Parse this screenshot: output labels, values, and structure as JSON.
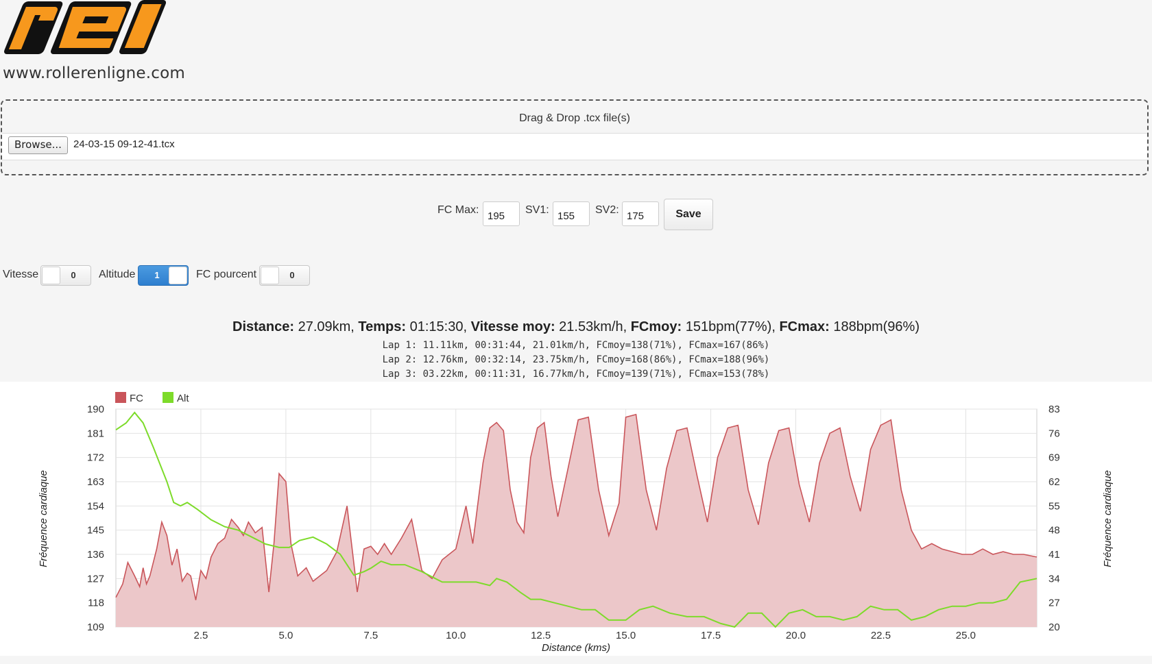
{
  "header": {
    "logo_text": "rel",
    "site_url": "www.rollerenligne.com"
  },
  "dropzone": {
    "title": "Drag & Drop .tcx file(s)",
    "browse_label": "Browse...",
    "file_name": "24-03-15 09-12-41.tcx"
  },
  "hr_form": {
    "fcmax_label": "FC Max:",
    "fcmax_value": "195",
    "sv1_label": "SV1:",
    "sv1_value": "155",
    "sv2_label": "SV2:",
    "sv2_value": "175",
    "save_label": "Save"
  },
  "toggles": [
    {
      "label": "Vitesse",
      "value": "0",
      "on": false
    },
    {
      "label": "Altitude",
      "value": "1",
      "on": true
    },
    {
      "label": "FC pourcent",
      "value": "0",
      "on": false
    }
  ],
  "summary": {
    "distance_label": "Distance:",
    "distance_value": " 27.09km, ",
    "temps_label": "Temps:",
    "temps_value": " 01:15:30, ",
    "vitesse_label": "Vitesse moy:",
    "vitesse_value": " 21.53km/h, ",
    "fcmoy_label": "FCmoy:",
    "fcmoy_value": " 151bpm(77%), ",
    "fcmax_label": "FCmax:",
    "fcmax_value": " 188bpm(96%)"
  },
  "laps": [
    "Lap 1: 11.11km, 00:31:44, 21.01km/h, FCmoy=138(71%), FCmax=167(86%)",
    "Lap 2: 12.76km, 00:32:14, 23.75km/h, FCmoy=168(86%), FCmax=188(96%)",
    "Lap 3: 03.22km, 00:11:31, 16.77km/h, FCmoy=139(71%), FCmax=153(78%)"
  ],
  "colors": {
    "fc_line": "#c9555a",
    "fc_fill": "#ecc7c9",
    "alt_line": "#7ddb2a",
    "toggle_on": "#2e7fcf",
    "logo_orange": "#f7981d"
  },
  "chart_data": {
    "type": "area",
    "xlabel": "Distance (kms)",
    "ylabel": "Fréquence cardiaque",
    "y2label": "Fréquence cardiaque",
    "xlim": [
      0,
      27.09
    ],
    "ylim": [
      109,
      190
    ],
    "y2lim": [
      20,
      83
    ],
    "x_ticks": [
      "2.5",
      "5.0",
      "7.5",
      "10.0",
      "12.5",
      "15.0",
      "17.5",
      "20.0",
      "22.5",
      "25.0"
    ],
    "y_ticks": [
      "190",
      "181",
      "172",
      "163",
      "154",
      "145",
      "136",
      "127",
      "118",
      "109"
    ],
    "y2_ticks": [
      "83",
      "76",
      "69",
      "62",
      "55",
      "48",
      "41",
      "34",
      "27",
      "20"
    ],
    "legend": [
      "FC",
      "Alt"
    ],
    "legend_position": "top-left",
    "series": [
      {
        "name": "FC",
        "x": [
          0,
          0.2,
          0.35,
          0.55,
          0.7,
          0.8,
          0.9,
          1.0,
          1.2,
          1.35,
          1.5,
          1.65,
          1.8,
          1.95,
          2.1,
          2.2,
          2.35,
          2.5,
          2.65,
          2.8,
          3.0,
          3.2,
          3.4,
          3.6,
          3.75,
          3.9,
          4.1,
          4.3,
          4.5,
          4.65,
          4.8,
          5.0,
          5.15,
          5.35,
          5.6,
          5.8,
          6.0,
          6.2,
          6.5,
          6.8,
          7.1,
          7.3,
          7.5,
          7.7,
          7.9,
          8.1,
          8.4,
          8.7,
          9.0,
          9.3,
          9.6,
          9.8,
          10.0,
          10.3,
          10.5,
          10.8,
          11.0,
          11.2,
          11.4,
          11.6,
          11.8,
          12.0,
          12.2,
          12.4,
          12.6,
          12.8,
          13.0,
          13.3,
          13.6,
          13.9,
          14.2,
          14.5,
          14.8,
          15.0,
          15.3,
          15.6,
          15.9,
          16.2,
          16.5,
          16.8,
          17.1,
          17.4,
          17.7,
          18.0,
          18.3,
          18.6,
          18.9,
          19.2,
          19.5,
          19.8,
          20.1,
          20.4,
          20.7,
          21.0,
          21.3,
          21.6,
          21.9,
          22.2,
          22.5,
          22.8,
          23.1,
          23.4,
          23.7,
          24.0,
          24.3,
          24.6,
          24.9,
          25.2,
          25.5,
          25.8,
          26.1,
          26.4,
          26.7,
          27.09
        ],
        "values": [
          120,
          125,
          133,
          128,
          124,
          131,
          125,
          128,
          138,
          148,
          143,
          132,
          138,
          126,
          129,
          128,
          119,
          130,
          127,
          135,
          140,
          142,
          149,
          146,
          143,
          148,
          144,
          146,
          122,
          140,
          166,
          163,
          140,
          128,
          131,
          126,
          128,
          130,
          137,
          154,
          122,
          138,
          139,
          136,
          140,
          136,
          142,
          149,
          130,
          127,
          134,
          136,
          138,
          154,
          140,
          170,
          183,
          185,
          182,
          160,
          148,
          144,
          172,
          183,
          185,
          165,
          150,
          168,
          186,
          187,
          160,
          143,
          155,
          187,
          188,
          160,
          145,
          168,
          182,
          183,
          165,
          148,
          172,
          183,
          184,
          160,
          147,
          170,
          182,
          183,
          162,
          148,
          170,
          181,
          183,
          165,
          152,
          175,
          184,
          186,
          160,
          145,
          138,
          140,
          138,
          137,
          136,
          136,
          138,
          136,
          137,
          136,
          136,
          135
        ]
      },
      {
        "name": "Alt",
        "x": [
          0,
          0.3,
          0.55,
          0.8,
          1.1,
          1.5,
          1.7,
          1.9,
          2.1,
          2.4,
          2.8,
          3.2,
          3.6,
          4.0,
          4.4,
          4.8,
          5.1,
          5.4,
          5.8,
          6.2,
          6.6,
          7.0,
          7.3,
          7.5,
          7.8,
          8.1,
          8.5,
          9.0,
          9.6,
          10.2,
          10.6,
          11.0,
          11.2,
          11.5,
          11.9,
          12.2,
          12.5,
          12.9,
          13.3,
          13.7,
          14.1,
          14.5,
          15.0,
          15.4,
          15.8,
          16.3,
          16.8,
          17.3,
          17.8,
          18.2,
          18.6,
          19.0,
          19.4,
          19.8,
          20.2,
          20.6,
          21.0,
          21.4,
          21.8,
          22.2,
          22.6,
          23.0,
          23.4,
          23.8,
          24.2,
          24.6,
          25.0,
          25.4,
          25.8,
          26.2,
          26.6,
          27.09
        ],
        "values": [
          77,
          79,
          82,
          79,
          72,
          62,
          56,
          55,
          56,
          54,
          51,
          49,
          48,
          46,
          44,
          43,
          43,
          45,
          46,
          44,
          41,
          35,
          36,
          37,
          39,
          38,
          38,
          36,
          33,
          33,
          33,
          32,
          34,
          33,
          30,
          28,
          28,
          27,
          26,
          25,
          25,
          22,
          22,
          25,
          26,
          24,
          23,
          23,
          21,
          20,
          24,
          24,
          20,
          24,
          25,
          23,
          23,
          22,
          23,
          26,
          25,
          25,
          22,
          23,
          25,
          26,
          26,
          27,
          27,
          28,
          33,
          34
        ]
      }
    ]
  }
}
